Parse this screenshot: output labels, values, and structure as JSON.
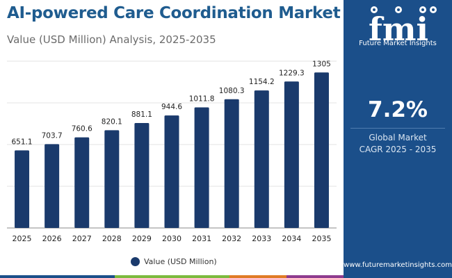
{
  "header": {
    "title": "AI-powered Care Coordination Market",
    "subtitle": "Value (USD Million) Analysis, 2025-2035"
  },
  "side_panel": {
    "logo_text": "Future Market Insights",
    "cagr_value": "7.2%",
    "cagr_label_line1": "Global Market",
    "cagr_label_line2": "CAGR 2025 - 2035",
    "url": "www.futuremarketinsights.com",
    "background_color": "#1b4f8a"
  },
  "legend": {
    "label": "Value (USD Million)"
  },
  "colors": {
    "bar": "#1a3a6c",
    "title": "#1f5c8f",
    "bottom_bar": [
      "#1b4f8a",
      "#7cba3d",
      "#e07b26",
      "#8e3b8e"
    ]
  },
  "chart_data": {
    "type": "bar",
    "title": "AI-powered Care Coordination Market",
    "subtitle": "Value (USD Million) Analysis, 2025-2035",
    "categories": [
      "2025",
      "2026",
      "2027",
      "2028",
      "2029",
      "2030",
      "2031",
      "2032",
      "2033",
      "2034",
      "2035"
    ],
    "series": [
      {
        "name": "Value (USD Million)",
        "values": [
          651.1,
          703.7,
          760.6,
          820.1,
          881.1,
          944.6,
          1011.8,
          1080.3,
          1154.2,
          1229.3,
          1305
        ]
      }
    ],
    "value_labels": [
      "651.1",
      "703.7",
      "760.6",
      "820.1",
      "881.1",
      "944.6",
      "1011.8",
      "1080.3",
      "1154.2",
      "1229.3",
      "1305"
    ],
    "ylim": [
      0,
      1400
    ],
    "grid": true,
    "legend_position": "bottom-center"
  }
}
